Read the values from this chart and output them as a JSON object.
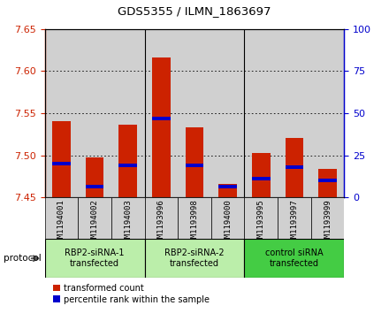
{
  "title": "GDS5355 / ILMN_1863697",
  "samples": [
    "GSM1194001",
    "GSM1194002",
    "GSM1194003",
    "GSM1193996",
    "GSM1193998",
    "GSM1194000",
    "GSM1193995",
    "GSM1193997",
    "GSM1193999"
  ],
  "red_values": [
    7.54,
    7.497,
    7.536,
    7.616,
    7.533,
    7.466,
    7.503,
    7.521,
    7.484
  ],
  "blue_percentiles": [
    20,
    6.5,
    19,
    47,
    19,
    6.5,
    11,
    18,
    10
  ],
  "ymin": 7.45,
  "ymax": 7.65,
  "yticks": [
    7.45,
    7.5,
    7.55,
    7.6,
    7.65
  ],
  "right_yticks": [
    0,
    25,
    50,
    75,
    100
  ],
  "groups": [
    {
      "label": "RBP2-siRNA-1\ntransfected",
      "start": 0,
      "end": 3,
      "color": "#bbeeaa"
    },
    {
      "label": "RBP2-siRNA-2\ntransfected",
      "start": 3,
      "end": 6,
      "color": "#bbeeaa"
    },
    {
      "label": "control siRNA\ntransfected",
      "start": 6,
      "end": 9,
      "color": "#44cc44"
    }
  ],
  "bar_width": 0.55,
  "bar_color_red": "#cc2200",
  "bar_color_blue": "#0000cc",
  "left_tick_color": "#cc2200",
  "right_tick_color": "#0000cc",
  "bg_color_sample": "#d0d0d0",
  "legend_red": "transformed count",
  "legend_blue": "percentile rank within the sample",
  "protocol_label": "protocol"
}
